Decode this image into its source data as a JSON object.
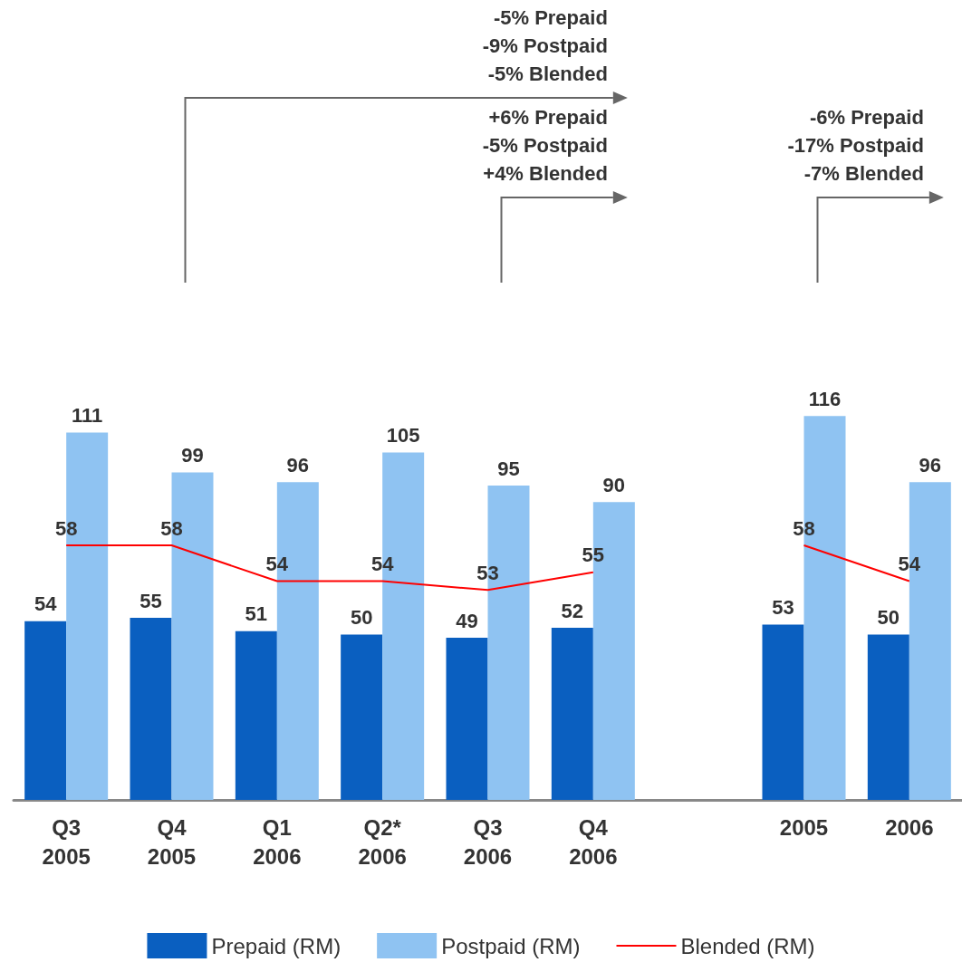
{
  "chart_data": {
    "type": "bar",
    "categories": [
      "Q3\n2005",
      "Q4\n2005",
      "Q1\n2006",
      "Q2*\n2006",
      "Q3\n2006",
      "Q4\n2006",
      null,
      "2005",
      "2006"
    ],
    "series": [
      {
        "name": "Prepaid (RM)",
        "color": "#0a5fc0",
        "values": [
          54,
          55,
          51,
          50,
          49,
          52,
          null,
          53,
          50
        ]
      },
      {
        "name": "Postpaid (RM)",
        "color": "#8fc3f2",
        "values": [
          111,
          99,
          96,
          105,
          95,
          90,
          null,
          116,
          96
        ]
      },
      {
        "name": "Blended (RM)",
        "type": "line",
        "axis": "y2",
        "color": "#ff0000",
        "values": [
          58,
          58,
          54,
          54,
          53,
          55,
          null,
          58,
          54
        ]
      }
    ],
    "annotations": [
      "-5% Prepaid\n-9% Postpaid\n-5% Blended",
      "+6% Prepaid\n-5% Postpaid\n+4% Blended",
      "-6% Prepaid\n-17% Postpaid\n-7% Blended"
    ],
    "data_labels": true,
    "legend": "bottom",
    "grid": false,
    "marker": "none",
    "line_style": "solid"
  }
}
